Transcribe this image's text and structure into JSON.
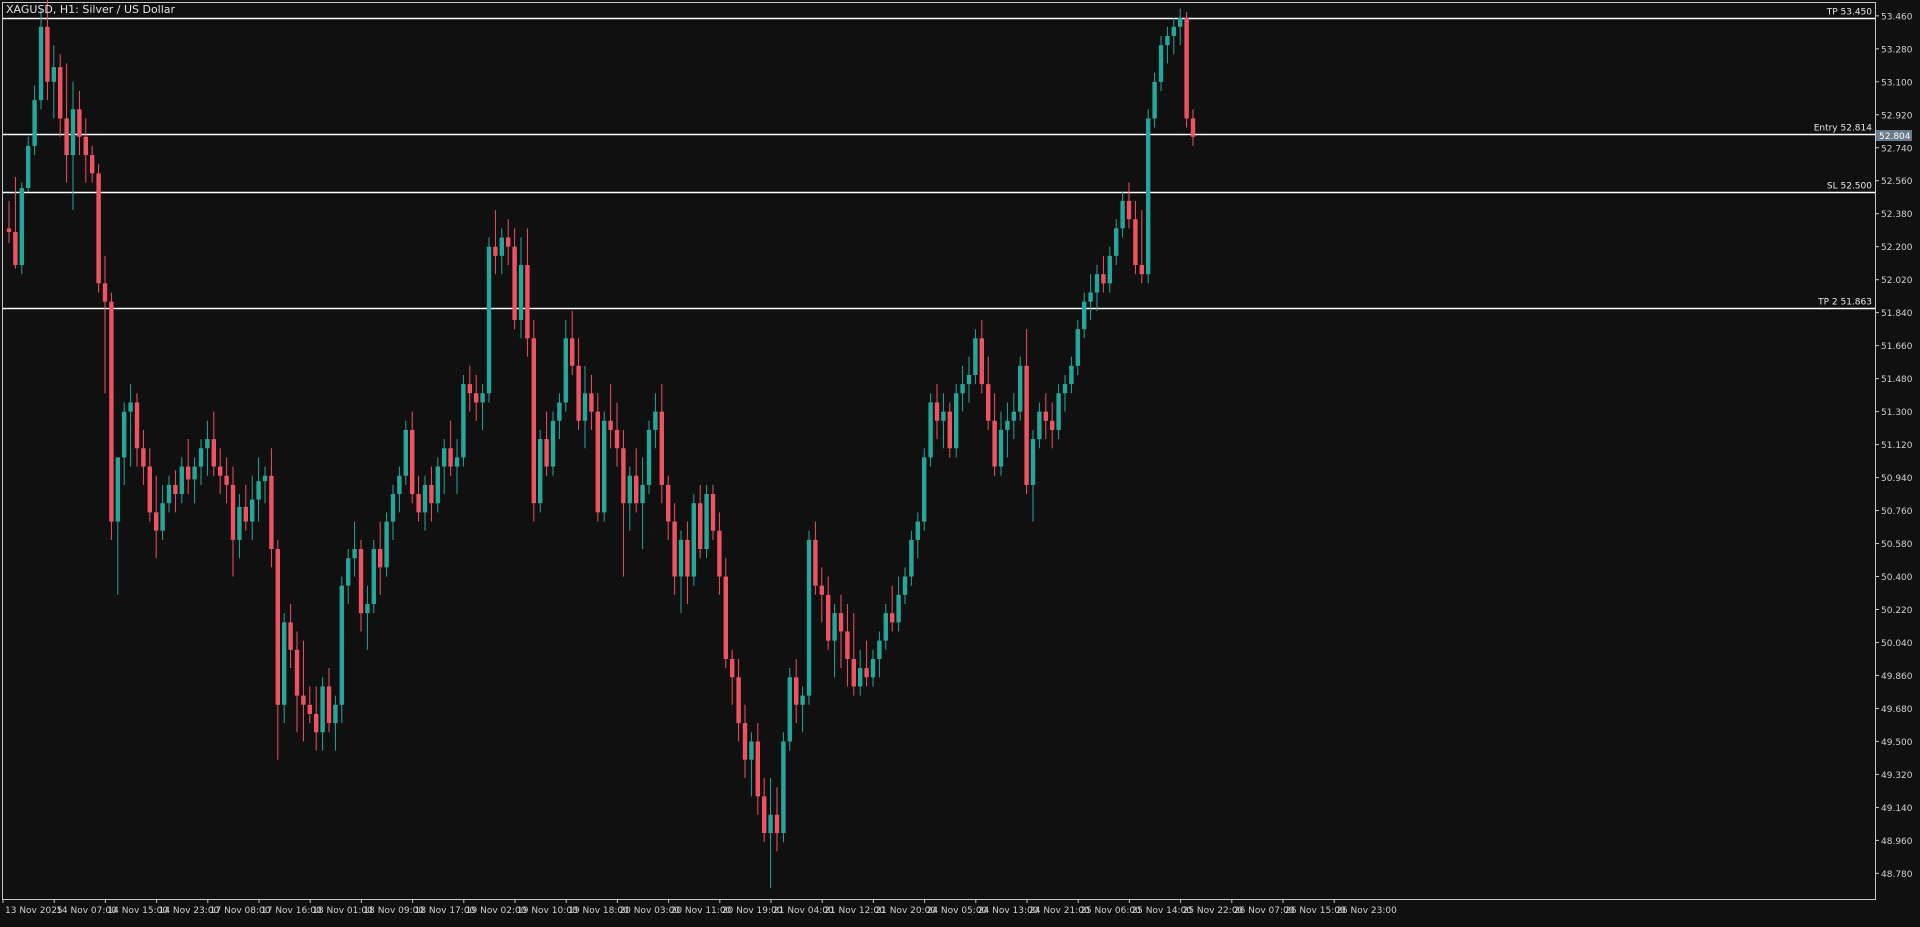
{
  "window": {
    "title": "XAGUSD, H1:  Silver / US Dollar"
  },
  "colors": {
    "background": "#101010",
    "frame": "#c8c8c8",
    "bull": "#26a69a",
    "bear": "#ef5362",
    "level_line": "#ffffff",
    "price_tag_bg": "#6b7a8a",
    "axis_text": "#cfcfcf"
  },
  "chart_data": {
    "type": "candlestick",
    "symbol": "XAGUSD",
    "timeframe": "H1",
    "ylim": [
      48.64,
      53.53
    ],
    "y_ticks": [
      "53.460",
      "53.280",
      "53.100",
      "52.920",
      "52.740",
      "52.560",
      "52.380",
      "52.200",
      "52.020",
      "51.840",
      "51.660",
      "51.480",
      "51.300",
      "51.120",
      "50.940",
      "50.760",
      "50.580",
      "50.400",
      "50.220",
      "50.040",
      "49.860",
      "49.680",
      "49.500",
      "49.320",
      "49.140",
      "48.960",
      "48.780"
    ],
    "x_ticks": [
      {
        "label": "13 Nov 2025",
        "bar": 0
      },
      {
        "label": "14 Nov 07:00",
        "bar": 8
      },
      {
        "label": "14 Nov 15:00",
        "bar": 16
      },
      {
        "label": "14 Nov 23:00",
        "bar": 24
      },
      {
        "label": "17 Nov 08:00",
        "bar": 32
      },
      {
        "label": "17 Nov 16:00",
        "bar": 40
      },
      {
        "label": "18 Nov 01:00",
        "bar": 48
      },
      {
        "label": "18 Nov 09:00",
        "bar": 56
      },
      {
        "label": "18 Nov 17:00",
        "bar": 64
      },
      {
        "label": "19 Nov 02:00",
        "bar": 72
      },
      {
        "label": "19 Nov 10:00",
        "bar": 80
      },
      {
        "label": "19 Nov 18:00",
        "bar": 88
      },
      {
        "label": "20 Nov 03:00",
        "bar": 96
      },
      {
        "label": "20 Nov 11:00",
        "bar": 104
      },
      {
        "label": "20 Nov 19:00",
        "bar": 112
      },
      {
        "label": "21 Nov 04:00",
        "bar": 120
      },
      {
        "label": "21 Nov 12:00",
        "bar": 128
      },
      {
        "label": "21 Nov 20:00",
        "bar": 136
      },
      {
        "label": "24 Nov 05:00",
        "bar": 144
      },
      {
        "label": "24 Nov 13:00",
        "bar": 152
      },
      {
        "label": "24 Nov 21:00",
        "bar": 160
      },
      {
        "label": "25 Nov 06:00",
        "bar": 168
      },
      {
        "label": "25 Nov 14:00",
        "bar": 176
      },
      {
        "label": "25 Nov 22:00",
        "bar": 184
      },
      {
        "label": "26 Nov 07:00",
        "bar": 192
      },
      {
        "label": "26 Nov 15:00",
        "bar": 200
      },
      {
        "label": "26 Nov 23:00",
        "bar": 208
      }
    ],
    "levels": [
      {
        "label": "TP 53.450",
        "price": 53.45
      },
      {
        "label": "Entry 52.814",
        "price": 52.814
      },
      {
        "label": "SL 52.500",
        "price": 52.5
      },
      {
        "label": "TP 2 51.863",
        "price": 51.863
      }
    ],
    "current_price": {
      "label": "52.804",
      "price": 52.804
    },
    "candles": [
      [
        52.3,
        52.45,
        52.22,
        52.28
      ],
      [
        52.28,
        52.58,
        52.08,
        52.1
      ],
      [
        52.1,
        52.55,
        52.05,
        52.52
      ],
      [
        52.52,
        52.8,
        52.5,
        52.75
      ],
      [
        52.75,
        53.08,
        52.7,
        53.0
      ],
      [
        53.0,
        53.5,
        52.95,
        53.4
      ],
      [
        53.4,
        53.58,
        53.0,
        53.1
      ],
      [
        53.1,
        53.3,
        52.9,
        53.18
      ],
      [
        53.18,
        53.25,
        52.8,
        52.9
      ],
      [
        52.9,
        53.2,
        52.55,
        52.7
      ],
      [
        52.7,
        53.1,
        52.4,
        52.95
      ],
      [
        52.95,
        53.05,
        52.7,
        52.8
      ],
      [
        52.8,
        52.9,
        52.55,
        52.7
      ],
      [
        52.7,
        52.75,
        52.55,
        52.6
      ],
      [
        52.6,
        52.65,
        51.95,
        52.0
      ],
      [
        52.0,
        52.15,
        51.4,
        51.9
      ],
      [
        51.9,
        51.95,
        50.6,
        50.7
      ],
      [
        50.7,
        51.05,
        50.3,
        51.05
      ],
      [
        51.05,
        51.35,
        50.9,
        51.3
      ],
      [
        51.3,
        51.45,
        51.0,
        51.35
      ],
      [
        51.35,
        51.4,
        51.0,
        51.1
      ],
      [
        51.1,
        51.2,
        50.9,
        51.0
      ],
      [
        51.0,
        51.1,
        50.7,
        50.75
      ],
      [
        50.75,
        50.95,
        50.5,
        50.65
      ],
      [
        50.65,
        50.9,
        50.6,
        50.8
      ],
      [
        50.8,
        50.95,
        50.75,
        50.9
      ],
      [
        50.9,
        50.98,
        50.75,
        50.85
      ],
      [
        50.85,
        51.05,
        50.8,
        51.0
      ],
      [
        51.0,
        51.15,
        50.85,
        50.93
      ],
      [
        50.93,
        51.05,
        50.8,
        51.0
      ],
      [
        51.0,
        51.15,
        50.9,
        51.1
      ],
      [
        51.1,
        51.25,
        50.95,
        51.15
      ],
      [
        51.15,
        51.3,
        50.95,
        51.0
      ],
      [
        51.0,
        51.1,
        50.85,
        50.95
      ],
      [
        50.95,
        51.05,
        50.8,
        50.9
      ],
      [
        50.9,
        51.0,
        50.4,
        50.6
      ],
      [
        50.6,
        50.85,
        50.5,
        50.78
      ],
      [
        50.78,
        50.9,
        50.65,
        50.7
      ],
      [
        50.7,
        50.95,
        50.6,
        50.82
      ],
      [
        50.82,
        51.05,
        50.7,
        50.92
      ],
      [
        50.92,
        51.0,
        50.8,
        50.95
      ],
      [
        50.95,
        51.1,
        50.45,
        50.55
      ],
      [
        50.55,
        50.6,
        49.4,
        49.7
      ],
      [
        49.7,
        50.2,
        49.6,
        50.15
      ],
      [
        50.15,
        50.25,
        49.9,
        50.0
      ],
      [
        50.0,
        50.1,
        49.55,
        49.75
      ],
      [
        49.75,
        50.05,
        49.5,
        49.7
      ],
      [
        49.7,
        49.8,
        49.6,
        49.65
      ],
      [
        49.65,
        49.8,
        49.45,
        49.55
      ],
      [
        49.55,
        49.85,
        49.45,
        49.8
      ],
      [
        49.8,
        49.9,
        49.55,
        49.6
      ],
      [
        49.6,
        49.75,
        49.45,
        49.7
      ],
      [
        49.7,
        50.4,
        49.6,
        50.35
      ],
      [
        50.35,
        50.55,
        50.25,
        50.5
      ],
      [
        50.5,
        50.7,
        50.4,
        50.55
      ],
      [
        50.55,
        50.6,
        50.1,
        50.2
      ],
      [
        50.2,
        50.35,
        50.0,
        50.25
      ],
      [
        50.25,
        50.6,
        50.2,
        50.55
      ],
      [
        50.55,
        50.7,
        50.3,
        50.45
      ],
      [
        50.45,
        50.75,
        50.4,
        50.7
      ],
      [
        50.7,
        50.9,
        50.6,
        50.85
      ],
      [
        50.85,
        51.0,
        50.75,
        50.95
      ],
      [
        50.95,
        51.25,
        50.9,
        51.2
      ],
      [
        51.2,
        51.3,
        50.8,
        50.85
      ],
      [
        50.85,
        50.95,
        50.7,
        50.75
      ],
      [
        50.75,
        50.95,
        50.65,
        50.9
      ],
      [
        50.9,
        51.0,
        50.7,
        50.8
      ],
      [
        50.8,
        51.05,
        50.75,
        51.0
      ],
      [
        51.0,
        51.15,
        50.85,
        51.1
      ],
      [
        51.1,
        51.25,
        50.95,
        51.0
      ],
      [
        51.0,
        51.15,
        50.85,
        51.05
      ],
      [
        51.05,
        51.5,
        51.0,
        51.45
      ],
      [
        51.45,
        51.55,
        51.3,
        51.4
      ],
      [
        51.4,
        51.5,
        51.25,
        51.35
      ],
      [
        51.35,
        51.45,
        51.2,
        51.4
      ],
      [
        51.4,
        52.25,
        51.35,
        52.2
      ],
      [
        52.2,
        52.4,
        52.05,
        52.15
      ],
      [
        52.15,
        52.3,
        52.05,
        52.25
      ],
      [
        52.25,
        52.35,
        52.1,
        52.2
      ],
      [
        52.2,
        52.3,
        51.75,
        51.8
      ],
      [
        51.8,
        52.25,
        51.7,
        52.1
      ],
      [
        52.1,
        52.3,
        51.6,
        51.7
      ],
      [
        51.7,
        51.8,
        50.7,
        50.8
      ],
      [
        50.8,
        51.2,
        50.75,
        51.15
      ],
      [
        51.15,
        51.3,
        50.95,
        51.0
      ],
      [
        51.0,
        51.3,
        50.95,
        51.25
      ],
      [
        51.25,
        51.4,
        51.15,
        51.35
      ],
      [
        51.35,
        51.8,
        51.3,
        51.7
      ],
      [
        51.7,
        51.85,
        51.5,
        51.55
      ],
      [
        51.55,
        51.7,
        51.2,
        51.25
      ],
      [
        51.25,
        51.55,
        51.1,
        51.4
      ],
      [
        51.4,
        51.5,
        51.2,
        51.3
      ],
      [
        51.3,
        51.4,
        50.7,
        50.75
      ],
      [
        50.75,
        51.3,
        50.7,
        51.25
      ],
      [
        51.25,
        51.45,
        51.1,
        51.2
      ],
      [
        51.2,
        51.35,
        51.0,
        51.1
      ],
      [
        51.1,
        51.2,
        50.4,
        50.8
      ],
      [
        50.8,
        51.0,
        50.65,
        50.95
      ],
      [
        50.95,
        51.1,
        50.75,
        50.8
      ],
      [
        50.8,
        51.05,
        50.55,
        50.9
      ],
      [
        50.9,
        51.25,
        50.85,
        51.2
      ],
      [
        51.2,
        51.4,
        51.1,
        51.3
      ],
      [
        51.3,
        51.45,
        50.8,
        50.9
      ],
      [
        50.9,
        50.95,
        50.6,
        50.7
      ],
      [
        50.7,
        50.8,
        50.3,
        50.4
      ],
      [
        50.4,
        50.65,
        50.2,
        50.6
      ],
      [
        50.6,
        50.7,
        50.25,
        50.4
      ],
      [
        50.4,
        50.85,
        50.35,
        50.8
      ],
      [
        50.8,
        50.9,
        50.5,
        50.55
      ],
      [
        50.55,
        50.9,
        50.5,
        50.85
      ],
      [
        50.85,
        50.9,
        50.6,
        50.65
      ],
      [
        50.65,
        50.75,
        50.3,
        50.4
      ],
      [
        50.4,
        50.5,
        49.9,
        49.95
      ],
      [
        49.95,
        50.0,
        49.7,
        49.85
      ],
      [
        49.85,
        49.95,
        49.5,
        49.6
      ],
      [
        49.6,
        49.7,
        49.3,
        49.4
      ],
      [
        49.4,
        49.55,
        49.2,
        49.5
      ],
      [
        49.5,
        49.6,
        49.1,
        49.2
      ],
      [
        49.2,
        49.3,
        48.95,
        49.0
      ],
      [
        49.0,
        49.3,
        48.7,
        49.1
      ],
      [
        49.1,
        49.25,
        48.9,
        49.0
      ],
      [
        49.0,
        49.55,
        48.95,
        49.5
      ],
      [
        49.5,
        49.9,
        49.45,
        49.85
      ],
      [
        49.85,
        49.95,
        49.6,
        49.7
      ],
      [
        49.7,
        49.8,
        49.55,
        49.75
      ],
      [
        49.75,
        50.65,
        49.7,
        50.6
      ],
      [
        50.6,
        50.7,
        50.3,
        50.35
      ],
      [
        50.35,
        50.45,
        50.15,
        50.3
      ],
      [
        50.3,
        50.4,
        50.0,
        50.05
      ],
      [
        50.05,
        50.25,
        49.85,
        50.2
      ],
      [
        50.2,
        50.3,
        49.9,
        50.1
      ],
      [
        50.1,
        50.25,
        49.8,
        49.95
      ],
      [
        49.95,
        50.2,
        49.75,
        49.8
      ],
      [
        49.8,
        50.0,
        49.75,
        49.9
      ],
      [
        49.9,
        50.05,
        49.8,
        49.85
      ],
      [
        49.85,
        50.0,
        49.8,
        49.95
      ],
      [
        49.95,
        50.1,
        49.85,
        50.05
      ],
      [
        50.05,
        50.25,
        50.0,
        50.2
      ],
      [
        50.2,
        50.35,
        50.1,
        50.15
      ],
      [
        50.15,
        50.4,
        50.1,
        50.3
      ],
      [
        50.3,
        50.45,
        50.25,
        50.4
      ],
      [
        50.4,
        50.65,
        50.35,
        50.6
      ],
      [
        50.6,
        50.75,
        50.5,
        50.7
      ],
      [
        50.7,
        51.1,
        50.65,
        51.05
      ],
      [
        51.05,
        51.4,
        51.0,
        51.35
      ],
      [
        51.35,
        51.45,
        51.15,
        51.25
      ],
      [
        51.25,
        51.4,
        51.1,
        51.3
      ],
      [
        51.3,
        51.35,
        51.05,
        51.1
      ],
      [
        51.1,
        51.45,
        51.05,
        51.4
      ],
      [
        51.4,
        51.55,
        51.3,
        51.45
      ],
      [
        51.45,
        51.6,
        51.35,
        51.5
      ],
      [
        51.5,
        51.75,
        51.45,
        51.7
      ],
      [
        51.7,
        51.8,
        51.4,
        51.45
      ],
      [
        51.45,
        51.6,
        51.2,
        51.25
      ],
      [
        51.25,
        51.4,
        50.95,
        51.0
      ],
      [
        51.0,
        51.3,
        50.95,
        51.2
      ],
      [
        51.2,
        51.35,
        51.05,
        51.25
      ],
      [
        51.25,
        51.4,
        51.15,
        51.3
      ],
      [
        51.3,
        51.6,
        51.25,
        51.55
      ],
      [
        51.55,
        51.75,
        50.85,
        50.9
      ],
      [
        50.9,
        51.2,
        50.7,
        51.15
      ],
      [
        51.15,
        51.35,
        51.1,
        51.3
      ],
      [
        51.3,
        51.4,
        51.15,
        51.25
      ],
      [
        51.25,
        51.35,
        51.1,
        51.2
      ],
      [
        51.2,
        51.45,
        51.15,
        51.4
      ],
      [
        51.4,
        51.5,
        51.3,
        51.45
      ],
      [
        51.45,
        51.6,
        51.4,
        51.55
      ],
      [
        51.55,
        51.8,
        51.5,
        51.75
      ],
      [
        51.75,
        51.95,
        51.7,
        51.9
      ],
      [
        51.9,
        52.05,
        51.8,
        51.95
      ],
      [
        51.95,
        52.1,
        51.85,
        52.05
      ],
      [
        52.05,
        52.15,
        51.95,
        52.0
      ],
      [
        52.0,
        52.2,
        51.95,
        52.15
      ],
      [
        52.15,
        52.35,
        52.1,
        52.3
      ],
      [
        52.3,
        52.5,
        52.25,
        52.45
      ],
      [
        52.45,
        52.55,
        52.3,
        52.35
      ],
      [
        52.35,
        52.45,
        52.05,
        52.1
      ],
      [
        52.1,
        52.4,
        52.0,
        52.05
      ],
      [
        52.05,
        52.95,
        52.0,
        52.9
      ],
      [
        52.9,
        53.15,
        52.85,
        53.1
      ],
      [
        53.1,
        53.35,
        53.05,
        53.3
      ],
      [
        53.3,
        53.4,
        53.2,
        53.35
      ],
      [
        53.35,
        53.45,
        53.25,
        53.4
      ],
      [
        53.4,
        53.5,
        53.3,
        53.45
      ],
      [
        53.45,
        53.48,
        52.85,
        52.9
      ],
      [
        52.9,
        52.95,
        52.75,
        52.8
      ]
    ]
  }
}
